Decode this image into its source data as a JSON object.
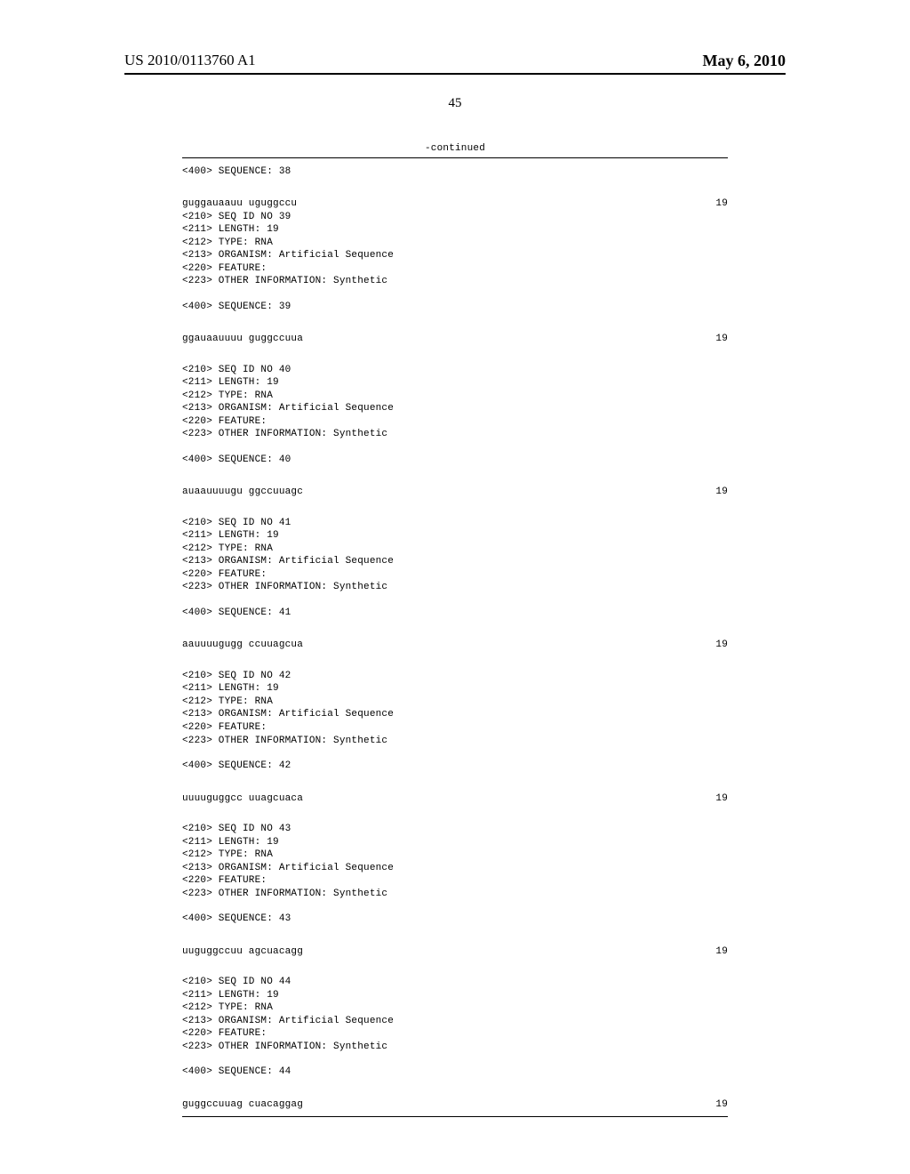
{
  "header": {
    "publication_number": "US 2010/0113760 A1",
    "publication_date": "May 6, 2010",
    "page_number": "45",
    "continued_label": "-continued"
  },
  "leading": {
    "seq_label": "<400> SEQUENCE: 38",
    "seq_nt": "guggauaauu uguggccu",
    "seq_len": "19"
  },
  "sequences": [
    {
      "meta": [
        "<210> SEQ ID NO 39",
        "<211> LENGTH: 19",
        "<212> TYPE: RNA",
        "<213> ORGANISM: Artificial Sequence",
        "<220> FEATURE:",
        "<223> OTHER INFORMATION: Synthetic"
      ],
      "seq_label": "<400> SEQUENCE: 39",
      "seq_nt": "ggauaauuuu guggccuua",
      "seq_len": "19"
    },
    {
      "meta": [
        "<210> SEQ ID NO 40",
        "<211> LENGTH: 19",
        "<212> TYPE: RNA",
        "<213> ORGANISM: Artificial Sequence",
        "<220> FEATURE:",
        "<223> OTHER INFORMATION: Synthetic"
      ],
      "seq_label": "<400> SEQUENCE: 40",
      "seq_nt": "auaauuuugu ggccuuagc",
      "seq_len": "19"
    },
    {
      "meta": [
        "<210> SEQ ID NO 41",
        "<211> LENGTH: 19",
        "<212> TYPE: RNA",
        "<213> ORGANISM: Artificial Sequence",
        "<220> FEATURE:",
        "<223> OTHER INFORMATION: Synthetic"
      ],
      "seq_label": "<400> SEQUENCE: 41",
      "seq_nt": "aauuuugugg ccuuagcua",
      "seq_len": "19"
    },
    {
      "meta": [
        "<210> SEQ ID NO 42",
        "<211> LENGTH: 19",
        "<212> TYPE: RNA",
        "<213> ORGANISM: Artificial Sequence",
        "<220> FEATURE:",
        "<223> OTHER INFORMATION: Synthetic"
      ],
      "seq_label": "<400> SEQUENCE: 42",
      "seq_nt": "uuuuguggcc uuagcuaca",
      "seq_len": "19"
    },
    {
      "meta": [
        "<210> SEQ ID NO 43",
        "<211> LENGTH: 19",
        "<212> TYPE: RNA",
        "<213> ORGANISM: Artificial Sequence",
        "<220> FEATURE:",
        "<223> OTHER INFORMATION: Synthetic"
      ],
      "seq_label": "<400> SEQUENCE: 43",
      "seq_nt": "uuguggccuu agcuacagg",
      "seq_len": "19"
    },
    {
      "meta": [
        "<210> SEQ ID NO 44",
        "<211> LENGTH: 19",
        "<212> TYPE: RNA",
        "<213> ORGANISM: Artificial Sequence",
        "<220> FEATURE:",
        "<223> OTHER INFORMATION: Synthetic"
      ],
      "seq_label": "<400> SEQUENCE: 44",
      "seq_nt": "guggccuuag cuacaggag",
      "seq_len": "19"
    }
  ]
}
